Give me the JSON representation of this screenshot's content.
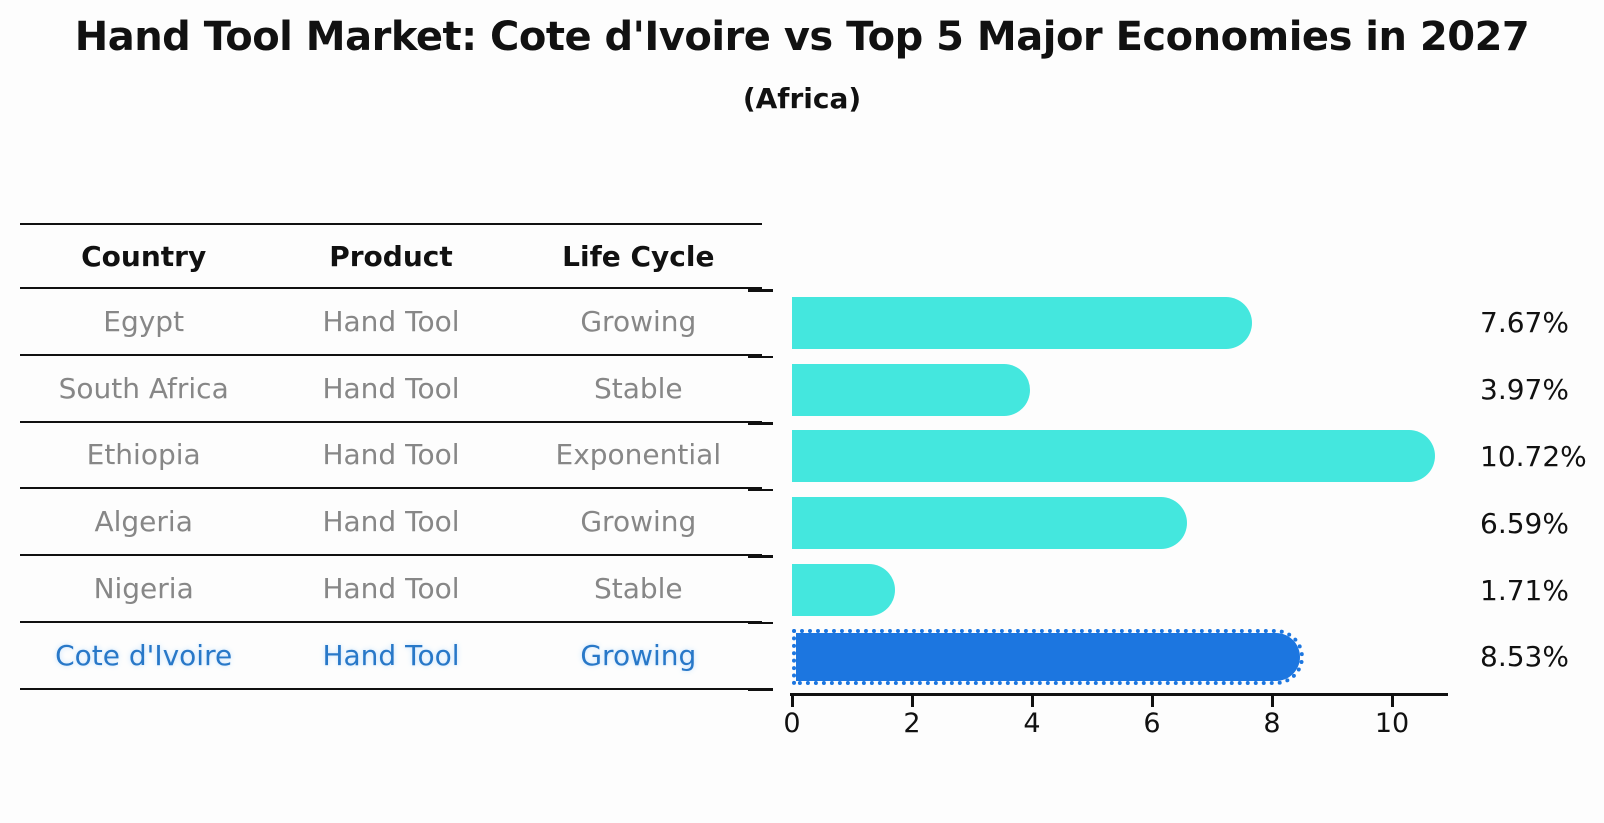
{
  "title": "Hand Tool Market: Cote d'Ivoire vs Top 5 Major Economies in 2027",
  "subtitle": "(Africa)",
  "table": {
    "headers": [
      "Country",
      "Product",
      "Life Cycle"
    ],
    "rows": [
      {
        "country": "Egypt",
        "product": "Hand Tool",
        "life_cycle": "Growing",
        "highlighted": false
      },
      {
        "country": "South Africa",
        "product": "Hand Tool",
        "life_cycle": "Stable",
        "highlighted": false
      },
      {
        "country": "Ethiopia",
        "product": "Hand Tool",
        "life_cycle": "Exponential",
        "highlighted": false
      },
      {
        "country": "Algeria",
        "product": "Hand Tool",
        "life_cycle": "Growing",
        "highlighted": false
      },
      {
        "country": "Nigeria",
        "product": "Hand Tool",
        "life_cycle": "Stable",
        "highlighted": false
      },
      {
        "country": "Cote d'Ivoire",
        "product": "Hand Tool",
        "life_cycle": "Growing",
        "highlighted": true
      }
    ]
  },
  "chart_data": {
    "type": "bar",
    "orientation": "horizontal",
    "categories": [
      "Egypt",
      "South Africa",
      "Ethiopia",
      "Algeria",
      "Nigeria",
      "Cote d'Ivoire"
    ],
    "values": [
      7.67,
      3.97,
      10.72,
      6.59,
      1.71,
      8.53
    ],
    "value_labels": [
      "7.67%",
      "3.97%",
      "10.72%",
      "6.59%",
      "1.71%",
      "8.53%"
    ],
    "x_ticks": [
      0,
      2,
      4,
      6,
      8,
      10
    ],
    "xlim": [
      0,
      10.95
    ],
    "xlabel": "",
    "ylabel": "",
    "grid": false,
    "legend": false,
    "bar_color": "#44e7de",
    "highlight_color": "#1c76e0",
    "highlight_index": 5,
    "highlight_style": "dotted-border",
    "value_label_color": "#111111",
    "row_text_color": "#878787",
    "highlight_text_color": "#2878c8"
  }
}
